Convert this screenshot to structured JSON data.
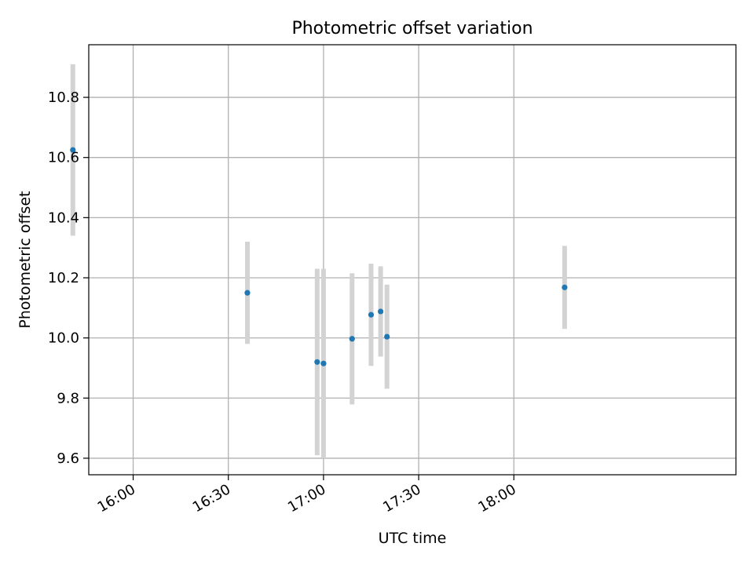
{
  "chart_data": {
    "type": "scatter",
    "title": "Photometric offset variation",
    "xlabel": "UTC time",
    "ylabel": "Photometric offset",
    "xlim": [
      "15:46",
      "19:10"
    ],
    "ylim": [
      9.545,
      10.975
    ],
    "x_ticks": [
      "16:00",
      "16:30",
      "17:00",
      "17:30",
      "18:00"
    ],
    "y_ticks": [
      "9.6",
      "9.8",
      "10.0",
      "10.2",
      "10.4",
      "10.6",
      "10.8"
    ],
    "grid": true,
    "legend": "none",
    "colors": {
      "points": "#1f77b4",
      "errorbars": "#d3d3d3",
      "grid": "#b0b0b0"
    },
    "series": [
      {
        "points": [
          {
            "x": "15:41",
            "y": 10.625,
            "yerr": 0.285
          },
          {
            "x": "16:36",
            "y": 10.15,
            "yerr": 0.17
          },
          {
            "x": "16:58",
            "y": 9.92,
            "yerr": 0.31
          },
          {
            "x": "17:00",
            "y": 9.915,
            "yerr": 0.315
          },
          {
            "x": "17:09",
            "y": 9.997,
            "yerr": 0.218
          },
          {
            "x": "17:15",
            "y": 10.077,
            "yerr": 0.17
          },
          {
            "x": "17:18",
            "y": 10.088,
            "yerr": 0.15
          },
          {
            "x": "17:20",
            "y": 10.004,
            "yerr": 0.173
          },
          {
            "x": "18:16",
            "y": 10.168,
            "yerr": 0.138
          }
        ]
      }
    ]
  }
}
